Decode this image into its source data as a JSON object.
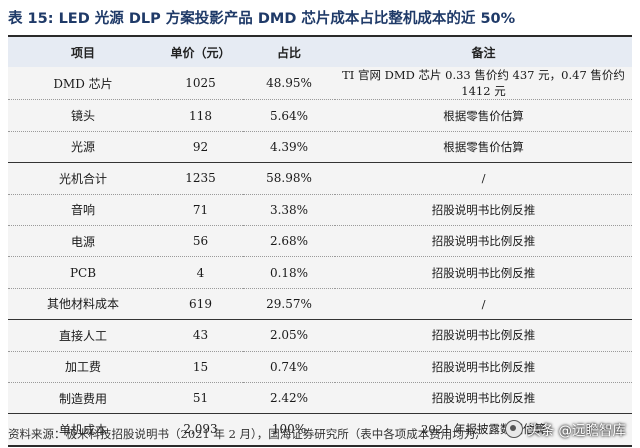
{
  "title": "表 15:  LED 光源 DLP 方案投影产品 DMD 芯片成本占比整机成本的近 50%",
  "headers": [
    "项目",
    "单价（元）",
    "占比",
    "备注"
  ],
  "rows": [
    {
      "item": "DMD 芯片",
      "price": "1025",
      "share": "48.95%",
      "note": "TI 官网 DMD 芯片 0.33 售价约 437 元，0.47 售价约 1412 元"
    },
    {
      "item": "镜头",
      "price": "118",
      "share": "5.64%",
      "note": "根据零售价估算"
    },
    {
      "item": "光源",
      "price": "92",
      "share": "4.39%",
      "note": "根据零售价估算"
    },
    {
      "item": "光机合计",
      "price": "1235",
      "share": "58.98%",
      "note": "/"
    },
    {
      "item": "音响",
      "price": "71",
      "share": "3.38%",
      "note": "招股说明书比例反推"
    },
    {
      "item": "电源",
      "price": "56",
      "share": "2.68%",
      "note": "招股说明书比例反推"
    },
    {
      "item": "PCB",
      "price": "4",
      "share": "0.18%",
      "note": "招股说明书比例反推"
    },
    {
      "item": "其他材料成本",
      "price": "619",
      "share": "29.57%",
      "note": "/"
    },
    {
      "item": "直接人工",
      "price": "43",
      "share": "2.05%",
      "note": "招股说明书比例反推"
    },
    {
      "item": "加工费",
      "price": "15",
      "share": "0.74%",
      "note": "招股说明书比例反推"
    },
    {
      "item": "制造费用",
      "price": "51",
      "share": "2.42%",
      "note": "招股说明书比例反推"
    },
    {
      "item": "单机成本",
      "price": "2,093",
      "share": "100%",
      "note": "2021 年报披露数据估算"
    }
  ],
  "source": "资料来源：极米科技招股说明书（2021 年 2 月），国海证券研究所（表中各项成本费用均为测算值）",
  "watermark": "头条 @远瞻智库"
}
